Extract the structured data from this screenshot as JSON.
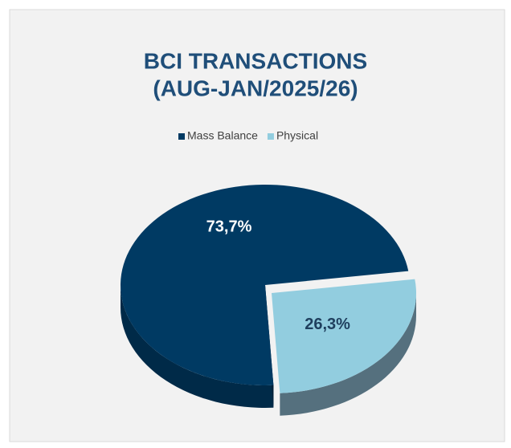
{
  "chart_data": {
    "type": "pie",
    "title": [
      "BCI TRANSACTIONS",
      "(AUG-JAN/2025/26)"
    ],
    "categories": [
      "Mass Balance",
      "Physical"
    ],
    "values": [
      73.7,
      26.3
    ],
    "value_labels": [
      "73,7%",
      "26,3%"
    ],
    "colors": [
      "#003a63",
      "#92cddf"
    ],
    "legend": "top"
  }
}
